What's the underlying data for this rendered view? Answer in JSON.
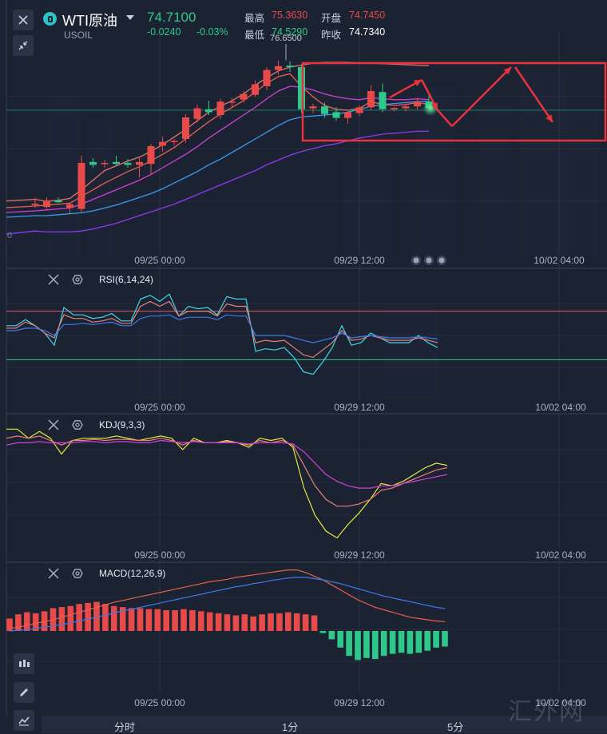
{
  "header": {
    "name": "WTI原油",
    "code": "USOIL",
    "price": "74.7100",
    "change": "-0.0240",
    "change_pct": "-0.03%",
    "stats": [
      {
        "label": "最高",
        "value": "75.3630",
        "color": "#e84a4a"
      },
      {
        "label": "开盘",
        "value": "74.7450",
        "color": "#e84a4a"
      },
      {
        "label": "最低",
        "value": "74.5290",
        "color": "#2ec98a"
      },
      {
        "label": "昨收",
        "value": "74.7340",
        "color": "#ffffff"
      }
    ]
  },
  "timeframes": [
    "分时",
    "1分",
    "5分"
  ],
  "watermark": "汇外网",
  "colors": {
    "bg": "#1b2232",
    "up": "#e84a4a",
    "down": "#2ec98a",
    "grid": "#2a3244"
  },
  "chart_data": [
    {
      "type": "candlestick",
      "panel": "main",
      "x_ticks": [
        "09/25 00:00",
        "09/29 12:00",
        "10/02 04:00"
      ],
      "marker_label": "76.6500",
      "left_tick_label": "0",
      "candles": [
        {
          "o": 72.92,
          "h": 73.08,
          "l": 72.86,
          "c": 72.95
        },
        {
          "o": 72.88,
          "h": 73.08,
          "l": 72.84,
          "c": 73.02
        },
        {
          "o": 73.02,
          "h": 73.08,
          "l": 72.96,
          "c": 72.98
        },
        {
          "o": 72.86,
          "h": 72.96,
          "l": 72.75,
          "c": 72.94
        },
        {
          "o": 72.84,
          "h": 73.95,
          "l": 72.78,
          "c": 73.8
        },
        {
          "o": 73.82,
          "h": 73.9,
          "l": 73.7,
          "c": 73.76
        },
        {
          "o": 73.78,
          "h": 73.86,
          "l": 73.7,
          "c": 73.8
        },
        {
          "o": 73.82,
          "h": 73.95,
          "l": 73.74,
          "c": 73.78
        },
        {
          "o": 73.8,
          "h": 73.88,
          "l": 73.7,
          "c": 73.76
        },
        {
          "o": 73.76,
          "h": 73.9,
          "l": 73.5,
          "c": 73.82
        },
        {
          "o": 73.78,
          "h": 74.2,
          "l": 73.55,
          "c": 74.15
        },
        {
          "o": 74.16,
          "h": 74.35,
          "l": 74.04,
          "c": 74.24
        },
        {
          "o": 74.24,
          "h": 74.3,
          "l": 74.16,
          "c": 74.26
        },
        {
          "o": 74.3,
          "h": 74.82,
          "l": 74.22,
          "c": 74.75
        },
        {
          "o": 74.72,
          "h": 75.02,
          "l": 74.64,
          "c": 74.94
        },
        {
          "o": 74.92,
          "h": 75.1,
          "l": 74.8,
          "c": 74.86
        },
        {
          "o": 74.8,
          "h": 75.14,
          "l": 74.72,
          "c": 75.08
        },
        {
          "o": 75.06,
          "h": 75.16,
          "l": 74.96,
          "c": 75.08
        },
        {
          "o": 75.12,
          "h": 75.3,
          "l": 75.06,
          "c": 75.24
        },
        {
          "o": 75.22,
          "h": 75.52,
          "l": 75.18,
          "c": 75.44
        },
        {
          "o": 75.4,
          "h": 75.8,
          "l": 75.32,
          "c": 75.74
        },
        {
          "o": 75.74,
          "h": 75.94,
          "l": 75.64,
          "c": 75.82
        },
        {
          "o": 75.83,
          "h": 75.92,
          "l": 75.7,
          "c": 75.8
        },
        {
          "o": 75.8,
          "h": 75.86,
          "l": 74.84,
          "c": 74.92
        },
        {
          "o": 74.94,
          "h": 75.04,
          "l": 74.84,
          "c": 74.98
        },
        {
          "o": 74.98,
          "h": 75.06,
          "l": 74.74,
          "c": 74.82
        },
        {
          "o": 74.86,
          "h": 74.96,
          "l": 74.68,
          "c": 74.74
        },
        {
          "o": 74.74,
          "h": 74.9,
          "l": 74.62,
          "c": 74.86
        },
        {
          "o": 74.84,
          "h": 75.0,
          "l": 74.78,
          "c": 74.96
        },
        {
          "o": 74.96,
          "h": 75.42,
          "l": 74.9,
          "c": 75.3
        },
        {
          "o": 75.28,
          "h": 75.46,
          "l": 74.86,
          "c": 74.92
        },
        {
          "o": 74.92,
          "h": 74.96,
          "l": 74.88,
          "c": 74.95
        },
        {
          "o": 74.94,
          "h": 75.04,
          "l": 74.88,
          "c": 74.98
        },
        {
          "o": 74.98,
          "h": 75.16,
          "l": 74.92,
          "c": 75.08
        },
        {
          "o": 75.08,
          "h": 75.24,
          "l": 74.92,
          "c": 74.94
        }
      ],
      "ma_lines": [
        {
          "color": "#e8736a",
          "values": [
            73.04,
            73.0,
            73.02,
            73.06,
            73.24,
            73.44,
            73.64,
            73.74,
            73.84,
            73.92,
            74.04,
            74.18,
            74.34,
            74.5,
            74.68,
            74.86,
            74.98,
            75.1,
            75.24,
            75.42,
            75.58,
            75.72,
            75.8,
            75.84,
            75.88,
            75.9,
            75.9,
            75.9,
            75.89,
            75.88,
            75.87,
            75.86,
            75.85,
            75.84,
            75.83
          ]
        },
        {
          "color": "#e86050",
          "values": [
            72.9,
            72.92,
            72.94,
            72.96,
            73.1,
            73.24,
            73.38,
            73.5,
            73.62,
            73.72,
            73.84,
            73.98,
            74.12,
            74.3,
            74.48,
            74.66,
            74.82,
            74.96,
            75.1,
            75.28,
            75.46,
            75.6,
            75.66,
            75.4,
            75.18,
            75.0,
            74.92,
            74.9,
            74.94,
            75.08,
            75.02,
            75.0,
            75.02,
            75.06,
            75.02
          ]
        },
        {
          "color": "#d040d8",
          "values": [
            72.8,
            72.82,
            72.84,
            72.86,
            72.94,
            73.04,
            73.14,
            73.24,
            73.34,
            73.44,
            73.56,
            73.7,
            73.84,
            73.98,
            74.14,
            74.32,
            74.48,
            74.64,
            74.8,
            74.96,
            75.14,
            75.3,
            75.4,
            75.38,
            75.32,
            75.24,
            75.18,
            75.14,
            75.12,
            75.16,
            75.14,
            75.12,
            75.12,
            75.14,
            75.12
          ]
        },
        {
          "color": "#3a9cf0",
          "values": [
            72.7,
            72.7,
            72.72,
            72.74,
            72.76,
            72.8,
            72.86,
            72.92,
            73.0,
            73.08,
            73.16,
            73.26,
            73.38,
            73.5,
            73.62,
            73.76,
            73.88,
            74.02,
            74.16,
            74.3,
            74.44,
            74.58,
            74.7,
            74.76,
            74.78,
            74.8,
            74.82,
            74.86,
            74.92,
            74.98,
            75.02,
            75.04,
            75.06,
            75.08,
            75.08
          ]
        },
        {
          "color": "#8a3cf0",
          "values": [
            72.38,
            72.36,
            72.36,
            72.36,
            72.38,
            72.42,
            72.48,
            72.54,
            72.62,
            72.7,
            72.78,
            72.86,
            72.94,
            73.04,
            73.14,
            73.24,
            73.34,
            73.44,
            73.54,
            73.64,
            73.76,
            73.86,
            73.96,
            74.04,
            74.1,
            74.16,
            74.2,
            74.26,
            74.32,
            74.36,
            74.4,
            74.42,
            74.44,
            74.46,
            74.46
          ]
        }
      ]
    },
    {
      "type": "line",
      "panel": "rsi",
      "title": "RSI(6,14,24)",
      "x_ticks": [
        "09/25 00:00",
        "09/29 12:00",
        "10/02 04:00"
      ],
      "levels": [
        {
          "value": 70,
          "color": "#e05a6a"
        },
        {
          "value": 30,
          "color": "#2ec98a"
        }
      ],
      "series": [
        {
          "color": "#40d8e8",
          "values": [
            58,
            58,
            63,
            58,
            52,
            42,
            73,
            67,
            67,
            64,
            65,
            68,
            62,
            62,
            80,
            83,
            78,
            84,
            66,
            74,
            72,
            73,
            67,
            82,
            80,
            80,
            37,
            39,
            38,
            40,
            32,
            20,
            18,
            28,
            40,
            58,
            42,
            44,
            52,
            48,
            44,
            44,
            44,
            50,
            44,
            40
          ]
        },
        {
          "color": "#e88078",
          "values": [
            56,
            56,
            61,
            58,
            52,
            48,
            67,
            64,
            64,
            61,
            62,
            64,
            60,
            60,
            74,
            78,
            74,
            78,
            66,
            70,
            70,
            70,
            66,
            76,
            74,
            74,
            44,
            46,
            45,
            46,
            40,
            34,
            32,
            38,
            44,
            54,
            46,
            47,
            50,
            48,
            46,
            46,
            46,
            48,
            46,
            44
          ]
        },
        {
          "color": "#3a7cf0",
          "values": [
            54,
            54,
            56,
            56,
            54,
            50,
            59,
            59,
            60,
            59,
            60,
            61,
            58,
            58,
            64,
            66,
            66,
            67,
            63,
            65,
            65,
            65,
            63,
            67,
            66,
            66,
            50,
            50,
            50,
            50,
            48,
            46,
            44,
            46,
            48,
            52,
            48,
            49,
            50,
            49,
            48,
            48,
            48,
            49,
            48,
            47
          ]
        }
      ]
    },
    {
      "type": "line",
      "panel": "kdj",
      "title": "KDJ(9,3,3)",
      "x_ticks": [
        "09/25 00:00",
        "09/29 12:00",
        "10/02 04:00"
      ],
      "series": [
        {
          "color": "#e8e840",
          "values": [
            92,
            92,
            84,
            90,
            84,
            70,
            82,
            84,
            84,
            84,
            86,
            84,
            82,
            84,
            86,
            84,
            74,
            84,
            80,
            80,
            82,
            80,
            76,
            84,
            82,
            84,
            76,
            40,
            16,
            2,
            -4,
            8,
            18,
            30,
            44,
            42,
            46,
            52,
            58,
            62,
            60
          ]
        },
        {
          "color": "#e88078",
          "values": [
            84,
            86,
            84,
            86,
            82,
            78,
            82,
            82,
            83,
            82,
            83,
            83,
            82,
            82,
            84,
            82,
            78,
            82,
            80,
            80,
            81,
            80,
            78,
            82,
            80,
            82,
            78,
            60,
            42,
            30,
            24,
            24,
            26,
            30,
            38,
            40,
            44,
            48,
            52,
            56,
            58
          ]
        },
        {
          "color": "#d040d8",
          "values": [
            78,
            80,
            80,
            81,
            80,
            80,
            80,
            81,
            81,
            80,
            81,
            81,
            80,
            80,
            82,
            81,
            80,
            81,
            80,
            80,
            80,
            80,
            79,
            80,
            80,
            80,
            79,
            72,
            62,
            52,
            46,
            42,
            40,
            40,
            42,
            42,
            44,
            46,
            48,
            50,
            52
          ]
        }
      ]
    },
    {
      "type": "bar",
      "panel": "macd",
      "title": "MACD(12,26,9)",
      "x_ticks": [
        "09/25 00:00",
        "09/29 12:00",
        "10/02 04:00"
      ],
      "histogram": [
        0.012,
        0.016,
        0.018,
        0.017,
        0.019,
        0.022,
        0.023,
        0.024,
        0.026,
        0.027,
        0.028,
        0.026,
        0.024,
        0.023,
        0.022,
        0.022,
        0.021,
        0.021,
        0.02,
        0.02,
        0.021,
        0.02,
        0.019,
        0.018,
        0.017,
        0.016,
        0.015,
        0.016,
        0.014,
        0.016,
        0.017,
        0.017,
        0.018,
        0.017,
        0.016,
        0.015,
        -0.002,
        -0.008,
        -0.016,
        -0.024,
        -0.028,
        -0.026,
        -0.027,
        -0.024,
        -0.022,
        -0.021,
        -0.022,
        -0.021,
        -0.019,
        -0.016,
        -0.015
      ],
      "series": [
        {
          "color": "#e8604a",
          "values": [
            0.004,
            0.006,
            0.009,
            0.012,
            0.015,
            0.018,
            0.022,
            0.026,
            0.03,
            0.034,
            0.038,
            0.042,
            0.046,
            0.049,
            0.052,
            0.055,
            0.058,
            0.061,
            0.064,
            0.067,
            0.07,
            0.073,
            0.076,
            0.079,
            0.081,
            0.083,
            0.086,
            0.088,
            0.09,
            0.092,
            0.094,
            0.096,
            0.098,
            0.098,
            0.094,
            0.088,
            0.082,
            0.074,
            0.066,
            0.058,
            0.05,
            0.044,
            0.038,
            0.034,
            0.03,
            0.026,
            0.022,
            0.02,
            0.018,
            0.016,
            0.015
          ]
        },
        {
          "color": "#3a7cf0",
          "values": [
            0.0,
            0.001,
            0.002,
            0.004,
            0.006,
            0.008,
            0.01,
            0.013,
            0.016,
            0.019,
            0.022,
            0.025,
            0.029,
            0.032,
            0.035,
            0.038,
            0.041,
            0.044,
            0.047,
            0.05,
            0.053,
            0.056,
            0.059,
            0.062,
            0.065,
            0.068,
            0.071,
            0.073,
            0.076,
            0.078,
            0.081,
            0.083,
            0.085,
            0.086,
            0.086,
            0.084,
            0.082,
            0.079,
            0.076,
            0.072,
            0.068,
            0.064,
            0.06,
            0.056,
            0.053,
            0.05,
            0.047,
            0.044,
            0.041,
            0.038,
            0.036
          ]
        }
      ]
    }
  ]
}
